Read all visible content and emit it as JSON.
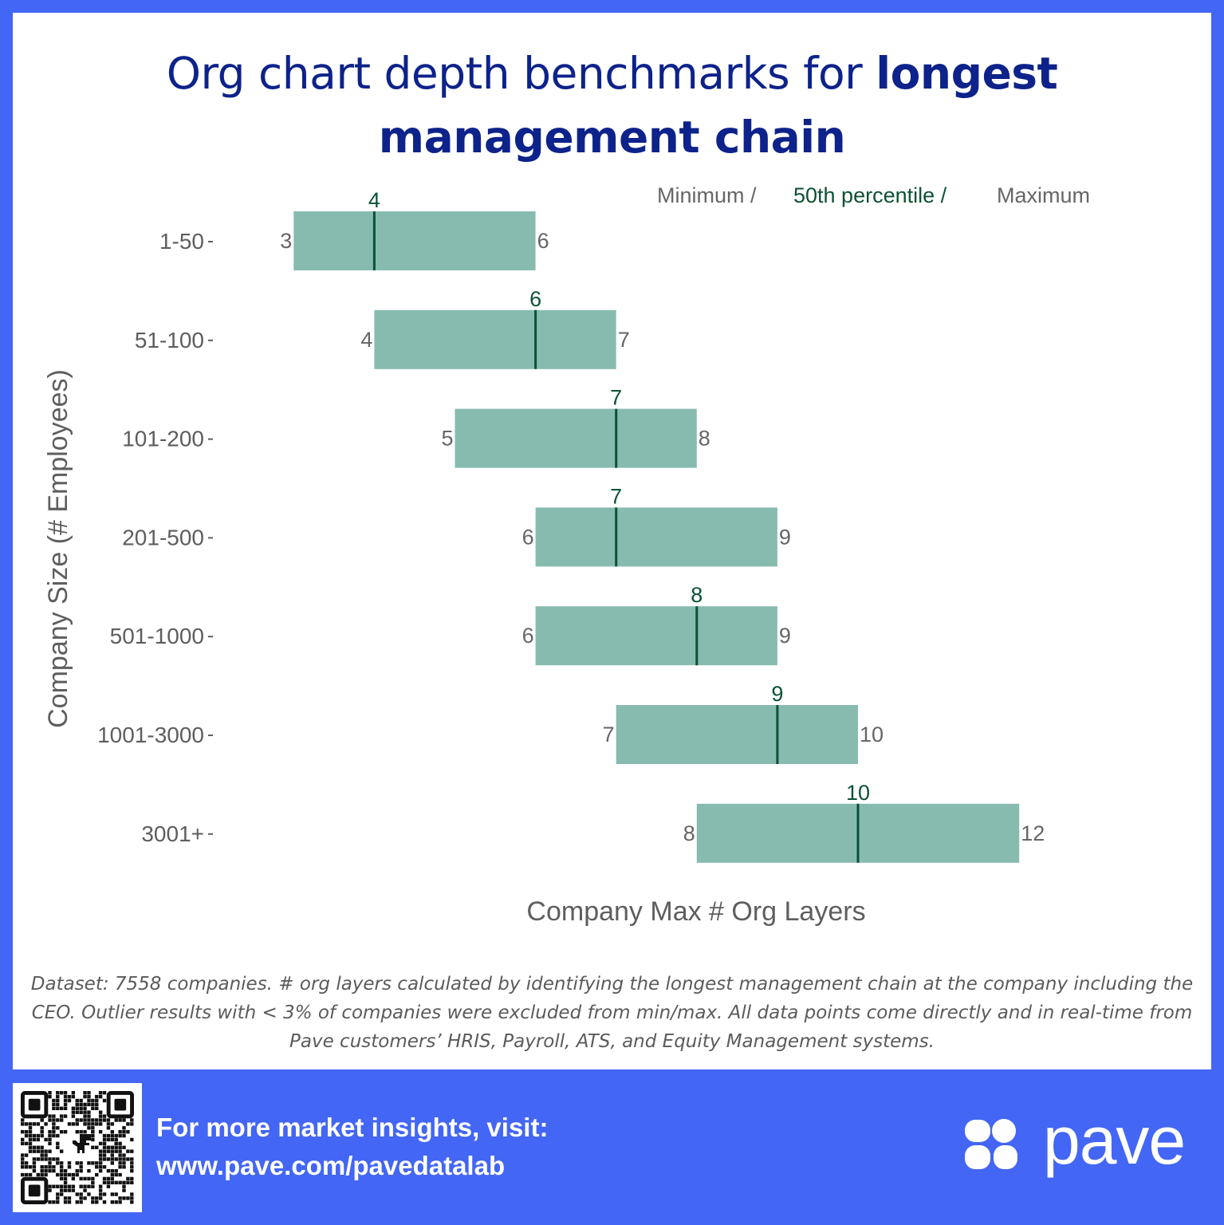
{
  "title": {
    "regular": "Org chart depth benchmarks for",
    "bold": "longest management chain"
  },
  "legend": {
    "min": "Minimum /",
    "median": "50th percentile /",
    "max": "Maximum"
  },
  "colors": {
    "bar": "#87bbb0",
    "median_line": "#0b5233",
    "median_label": "#0b5233",
    "minmax_label": "#666666",
    "frame": "#4366f5",
    "title": "#0d228a"
  },
  "chart_data": {
    "type": "bar",
    "orientation": "horizontal-range",
    "categories": [
      "1-50",
      "51-100",
      "101-200",
      "201-500",
      "501-1000",
      "1001-3000",
      "3001+"
    ],
    "series": [
      {
        "name": "Minimum",
        "values": [
          3,
          4,
          5,
          6,
          6,
          7,
          8
        ]
      },
      {
        "name": "50th percentile",
        "values": [
          4,
          6,
          7,
          7,
          8,
          9,
          10
        ]
      },
      {
        "name": "Maximum",
        "values": [
          6,
          7,
          8,
          9,
          9,
          10,
          12
        ]
      }
    ],
    "xlabel": "Company Max # Org Layers",
    "ylabel": "Company Size (# Employees)",
    "xlim": [
      0,
      13
    ],
    "grid": false,
    "legend_position": "top-right"
  },
  "footnote": "Dataset: 7558 companies. # org layers calculated by identifying the longest management chain at the company including the CEO. Outlier results with < 3% of companies were excluded from min/max. All data points come directly and in real-time from Pave customers’ HRIS, Payroll, ATS, and Equity Management systems.",
  "footer": {
    "line1": "For more market insights, visit:",
    "line2": "www.pave.com/pavedatalab"
  },
  "logo": {
    "text": "pave"
  }
}
